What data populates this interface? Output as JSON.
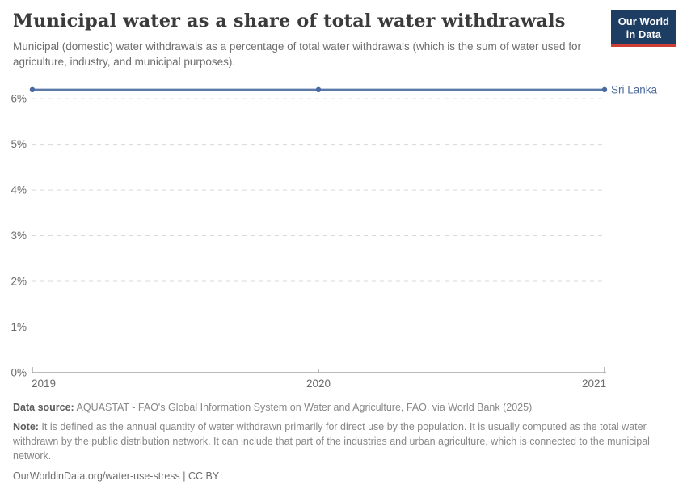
{
  "header": {
    "title": "Municipal water as a share of total water withdrawals",
    "subtitle": "Municipal (domestic) water withdrawals as a percentage of total water withdrawals (which is the sum of water used for agriculture, industry, and municipal purposes).",
    "logo": {
      "line1": "Our World",
      "line2": "in Data",
      "bg_color": "#1d3d63",
      "accent_color": "#cf3e34"
    }
  },
  "chart_data": {
    "type": "line",
    "title": "Municipal water as a share of total water withdrawals",
    "x": [
      2019,
      2020,
      2021
    ],
    "series": [
      {
        "name": "Sri Lanka",
        "values": [
          6.2,
          6.2,
          6.2
        ],
        "color": "#5b7aa9",
        "marker_color": "#4a69a0",
        "label_color": "#4c6a9c"
      }
    ],
    "xlabel": "",
    "ylabel": "",
    "xlim": [
      2019,
      2021
    ],
    "ylim": [
      0,
      6.48
    ],
    "yticks": [
      {
        "value": 0,
        "label": "0%"
      },
      {
        "value": 1,
        "label": "1%"
      },
      {
        "value": 2,
        "label": "2%"
      },
      {
        "value": 3,
        "label": "3%"
      },
      {
        "value": 4,
        "label": "4%"
      },
      {
        "value": 5,
        "label": "5%"
      },
      {
        "value": 6,
        "label": "6%"
      }
    ],
    "xticks": [
      {
        "value": 2019,
        "label": "2019"
      },
      {
        "value": 2020,
        "label": "2020"
      },
      {
        "value": 2021,
        "label": "2021"
      }
    ],
    "grid": "horizontal-dashed",
    "legend_position": "line-end",
    "grid_color": "#d9d9d9",
    "axis_color": "#a5a5a5",
    "tick_label_color": "#6b6b6b"
  },
  "footer": {
    "datasource_label": "Data source:",
    "datasource_text": " AQUASTAT - FAO's Global Information System on Water and Agriculture, FAO, via World Bank (2025)",
    "note_label": "Note:",
    "note_text": " It is defined as the annual quantity of water withdrawn primarily for direct use by the population. It is usually computed as the total water withdrawn by the public distribution network. It can include that part of the industries and urban agriculture, which is connected to the municipal network.",
    "url": "OurWorldinData.org/water-use-stress",
    "divider": " | ",
    "license": "CC BY"
  }
}
